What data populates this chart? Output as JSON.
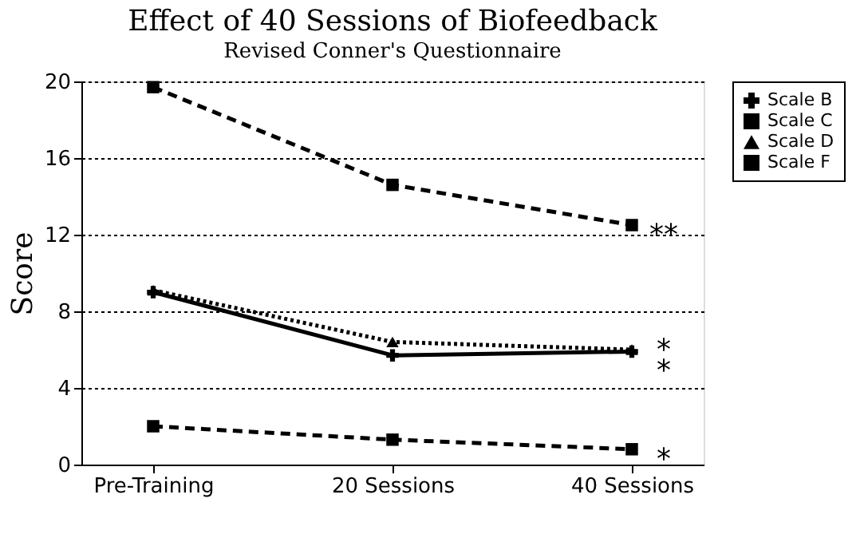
{
  "chart_data": {
    "type": "line",
    "title": "Effect of 40 Sessions of Biofeedback",
    "subtitle": "Revised Conner's Questionnaire",
    "ylabel": "Score",
    "categories": [
      "Pre-Training",
      "20 Sessions",
      "40 Sessions"
    ],
    "series": [
      {
        "name": "Scale B",
        "color": "#000000",
        "values": [
          9.0,
          5.7,
          5.9
        ],
        "marker": "cross",
        "line_style": "solid"
      },
      {
        "name": "Scale C",
        "color": "#000000",
        "values": [
          2.0,
          1.3,
          0.8
        ],
        "marker": "square",
        "line_style": "dashed"
      },
      {
        "name": "Scale D",
        "color": "#000000",
        "values": [
          9.1,
          6.4,
          6.0
        ],
        "marker": "triangle",
        "line_style": "dotted"
      },
      {
        "name": "Scale F",
        "color": "#000000",
        "values": [
          19.7,
          14.6,
          12.5
        ],
        "marker": "square",
        "line_style": "dashed"
      }
    ],
    "annotations": [
      {
        "text": "**",
        "x": "40 Sessions",
        "y": 12.5
      },
      {
        "text": "*",
        "x": "40 Sessions",
        "y": 6.0
      },
      {
        "text": "*",
        "x": "40 Sessions",
        "y": 5.9
      },
      {
        "text": "*",
        "x": "40 Sessions",
        "y": 0.8
      }
    ],
    "ylim": [
      0,
      20
    ],
    "yticks": [
      0,
      4,
      8,
      12,
      16,
      20
    ],
    "grid": "y",
    "legend": "right"
  }
}
